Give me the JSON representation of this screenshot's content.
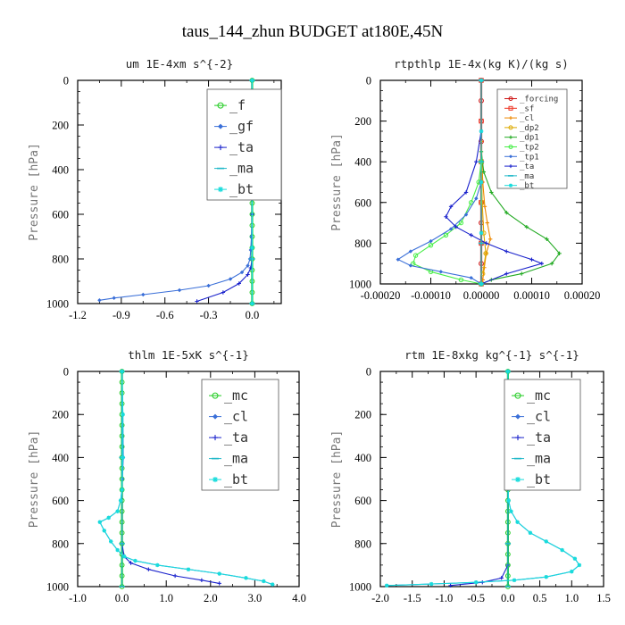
{
  "figure": {
    "title": "taus_144_zhun  BUDGET at180E,45N"
  },
  "chart_data": [
    {
      "id": "um",
      "type": "line",
      "title": "um   1E-4xm s^{-2}",
      "ylabel": "Pressure [hPa]",
      "xlim": [
        -1.2,
        0.2
      ],
      "ylim": [
        1000,
        0
      ],
      "xticks": [
        -1.2,
        -0.9,
        -0.6,
        -0.3,
        0.0
      ],
      "xtick_labels": [
        "-1.2",
        "-0.9",
        "-0.6",
        "-0.3",
        "0.0"
      ],
      "yticks": [
        0,
        200,
        400,
        600,
        800,
        1000
      ],
      "ytick_labels": [
        "0",
        "200",
        "400",
        "600",
        "800",
        "1000"
      ],
      "legend_position": "top-right",
      "series": [
        {
          "name": "_f",
          "color": "#22cc22",
          "marker": "circle",
          "x": [
            0,
            0,
            0,
            0,
            0,
            0,
            0,
            0,
            0,
            0,
            0,
            0,
            0,
            0,
            0,
            0,
            0,
            0,
            0,
            0,
            0
          ],
          "y": [
            0,
            50,
            100,
            150,
            200,
            250,
            300,
            350,
            400,
            450,
            500,
            550,
            600,
            650,
            700,
            750,
            800,
            850,
            900,
            950,
            1000
          ]
        },
        {
          "name": "_gf",
          "color": "#3a6fd8",
          "marker": "diamond",
          "x": [
            0,
            0,
            0,
            0,
            -0.005,
            -0.01,
            -0.015,
            -0.03,
            -0.07,
            -0.15,
            -0.3,
            -0.5,
            -0.75,
            -0.95,
            -1.05
          ],
          "y": [
            0,
            200,
            400,
            600,
            700,
            760,
            800,
            830,
            860,
            890,
            920,
            940,
            960,
            975,
            985
          ]
        },
        {
          "name": "_ta",
          "color": "#1a22cc",
          "marker": "plus",
          "x": [
            0,
            0,
            0,
            0,
            -0.01,
            -0.03,
            -0.09,
            -0.2,
            -0.38
          ],
          "y": [
            0,
            300,
            600,
            800,
            840,
            870,
            910,
            950,
            990
          ]
        },
        {
          "name": "_ma",
          "color": "#20b8c8",
          "marker": "dash",
          "x": [
            0,
            0,
            0,
            0
          ],
          "y": [
            0,
            400,
            800,
            1000
          ]
        },
        {
          "name": "_bt",
          "color": "#18dcdc",
          "marker": "star",
          "x": [
            0,
            0,
            0,
            0,
            0
          ],
          "y": [
            0,
            250,
            500,
            750,
            1000
          ]
        }
      ]
    },
    {
      "id": "rtpthlp",
      "type": "line",
      "title": "rtpthlp   1E-4x(kg K)/(kg s)",
      "ylabel": "Pressure [hPa]",
      "xlim": [
        -0.0002,
        0.0002
      ],
      "ylim": [
        1000,
        0
      ],
      "xticks": [
        -0.0002,
        -0.0001,
        0.0,
        0.0001,
        0.0002
      ],
      "xtick_labels": [
        "-0.00020",
        "-0.00010",
        "0.00000",
        "0.00010",
        "0.00020"
      ],
      "yticks": [
        0,
        200,
        400,
        600,
        800,
        1000
      ],
      "ytick_labels": [
        "0",
        "200",
        "400",
        "600",
        "800",
        "1000"
      ],
      "legend_position": "top-right",
      "series": [
        {
          "name": "_forcing",
          "color": "#cc1111",
          "marker": "circle",
          "x": [
            0,
            0,
            0,
            0,
            0,
            0,
            0,
            0,
            0,
            0,
            0
          ],
          "y": [
            0,
            100,
            200,
            300,
            400,
            500,
            600,
            700,
            800,
            900,
            1000
          ]
        },
        {
          "name": "_sf",
          "color": "#ee3322",
          "marker": "square",
          "x": [
            0,
            0,
            0,
            0,
            0,
            0
          ],
          "y": [
            0,
            200,
            400,
            600,
            800,
            1000
          ]
        },
        {
          "name": "_cl",
          "color": "#ee8800",
          "marker": "plus",
          "x": [
            0,
            3e-06,
            7e-06,
            1.2e-05,
            1.8e-05,
            1e-05,
            6e-06,
            3e-06
          ],
          "y": [
            300,
            500,
            620,
            700,
            780,
            850,
            920,
            980
          ]
        },
        {
          "name": "_dp2",
          "color": "#ddaa00",
          "marker": "circle",
          "x": [
            0,
            2e-06,
            5e-06,
            9e-06,
            3e-06
          ],
          "y": [
            400,
            600,
            750,
            850,
            950
          ]
        },
        {
          "name": "_dp1",
          "color": "#22aa22",
          "marker": "plus",
          "x": [
            0,
            5e-06,
            2e-05,
            5e-05,
            9e-05,
            0.00013,
            0.000155,
            0.00014,
            8e-05,
            2e-05,
            0
          ],
          "y": [
            350,
            450,
            550,
            650,
            720,
            780,
            850,
            900,
            950,
            980,
            1000
          ]
        },
        {
          "name": "_tp2",
          "color": "#44ee44",
          "marker": "circle",
          "x": [
            0,
            -5e-06,
            -2e-05,
            -4e-05,
            -7e-05,
            -0.0001,
            -0.00013,
            -0.000135,
            -0.0001,
            -4e-05,
            0
          ],
          "y": [
            400,
            500,
            600,
            700,
            760,
            810,
            860,
            900,
            940,
            980,
            1000
          ]
        },
        {
          "name": "_tp1",
          "color": "#3a6fd8",
          "marker": "diamond",
          "x": [
            0,
            -1e-05,
            -3e-05,
            -6e-05,
            -0.0001,
            -0.00014,
            -0.000165,
            -0.00014,
            -8e-05,
            -2e-05,
            0
          ],
          "y": [
            500,
            580,
            660,
            730,
            790,
            840,
            880,
            910,
            940,
            970,
            1000
          ]
        },
        {
          "name": "_ta",
          "color": "#1a22cc",
          "marker": "plus",
          "x": [
            0,
            -1e-05,
            -3e-05,
            -6e-05,
            -7e-05,
            -5e-05,
            -2e-05,
            1e-05,
            5e-05,
            0.0001,
            0.00012,
            5e-05,
            0
          ],
          "y": [
            250,
            400,
            550,
            620,
            670,
            720,
            760,
            800,
            840,
            880,
            900,
            950,
            1000
          ]
        },
        {
          "name": "_ma",
          "color": "#20b8c8",
          "marker": "dash",
          "x": [
            0,
            0,
            0,
            0
          ],
          "y": [
            0,
            400,
            800,
            1000
          ]
        },
        {
          "name": "_bt",
          "color": "#18dcdc",
          "marker": "star",
          "x": [
            0,
            0,
            0,
            0,
            0
          ],
          "y": [
            0,
            250,
            500,
            750,
            1000
          ]
        }
      ]
    },
    {
      "id": "thlm",
      "type": "line",
      "title": "thlm   1E-5xK s^{-1}",
      "ylabel": "Pressure [hPa]",
      "xlim": [
        -1.0,
        4.0
      ],
      "ylim": [
        1000,
        0
      ],
      "xticks": [
        -1.0,
        0.0,
        1.0,
        2.0,
        3.0,
        4.0
      ],
      "xtick_labels": [
        "-1.0",
        "0.0",
        "1.0",
        "2.0",
        "3.0",
        "4.0"
      ],
      "yticks": [
        0,
        200,
        400,
        600,
        800,
        1000
      ],
      "ytick_labels": [
        "0",
        "200",
        "400",
        "600",
        "800",
        "1000"
      ],
      "legend_position": "top-right",
      "series": [
        {
          "name": "_mc",
          "color": "#22cc22",
          "marker": "circle",
          "x": [
            0,
            0,
            0,
            0,
            0,
            0,
            0,
            0,
            0,
            0,
            0,
            0,
            0,
            0,
            0,
            0,
            0,
            0,
            0,
            0,
            0
          ],
          "y": [
            0,
            50,
            100,
            150,
            200,
            250,
            300,
            350,
            400,
            450,
            500,
            550,
            600,
            650,
            700,
            750,
            800,
            850,
            900,
            950,
            1000
          ]
        },
        {
          "name": "_cl",
          "color": "#3a6fd8",
          "marker": "diamond",
          "x": [
            0,
            0.02,
            0.03,
            0.01,
            0,
            -0.03,
            -0.1,
            -0.3,
            -0.5,
            -0.4,
            -0.25,
            -0.1,
            0.05,
            0.3,
            0.8,
            1.5,
            2.2,
            2.8,
            3.2,
            3.4
          ],
          "y": [
            0,
            200,
            400,
            500,
            550,
            600,
            650,
            680,
            700,
            740,
            790,
            830,
            860,
            880,
            900,
            920,
            940,
            960,
            975,
            990
          ]
        },
        {
          "name": "_ta",
          "color": "#1a22cc",
          "marker": "plus",
          "x": [
            0,
            0,
            0,
            0.05,
            0.2,
            0.6,
            1.2,
            1.8,
            2.2
          ],
          "y": [
            0,
            400,
            800,
            860,
            890,
            920,
            950,
            970,
            985
          ]
        },
        {
          "name": "_ma",
          "color": "#20b8c8",
          "marker": "dash",
          "x": [
            0,
            0,
            0,
            0
          ],
          "y": [
            0,
            400,
            800,
            1000
          ]
        },
        {
          "name": "_bt",
          "color": "#18dcdc",
          "marker": "star",
          "x": [
            0,
            0.02,
            0.02,
            0,
            -0.03,
            -0.1,
            -0.3,
            -0.5,
            -0.4,
            -0.25,
            -0.1,
            0.05,
            0.3,
            0.8,
            1.5,
            2.2,
            2.8,
            3.2,
            3.4
          ],
          "y": [
            0,
            200,
            400,
            550,
            600,
            650,
            680,
            700,
            740,
            790,
            830,
            860,
            880,
            900,
            920,
            940,
            960,
            975,
            990
          ]
        }
      ]
    },
    {
      "id": "rtm",
      "type": "line",
      "title": "rtm   1E-8xkg kg^{-1} s^{-1}",
      "ylabel": "Pressure [hPa]",
      "xlim": [
        -2.0,
        1.5
      ],
      "ylim": [
        1000,
        0
      ],
      "xticks": [
        -2.0,
        -1.5,
        -1.0,
        -0.5,
        0.0,
        0.5,
        1.0,
        1.5
      ],
      "xtick_labels": [
        "-2.0",
        "-1.5",
        "-1.0",
        "-0.5",
        "0.0",
        "0.5",
        "1.0",
        "1.5"
      ],
      "yticks": [
        0,
        200,
        400,
        600,
        800,
        1000
      ],
      "ytick_labels": [
        "0",
        "200",
        "400",
        "600",
        "800",
        "1000"
      ],
      "legend_position": "top-right",
      "series": [
        {
          "name": "_mc",
          "color": "#22cc22",
          "marker": "circle",
          "x": [
            0,
            0,
            0,
            0,
            0,
            0,
            0,
            0,
            0,
            0,
            0,
            0,
            0,
            0,
            0,
            0,
            0,
            0,
            0,
            0,
            0
          ],
          "y": [
            0,
            50,
            100,
            150,
            200,
            250,
            300,
            350,
            400,
            450,
            500,
            550,
            600,
            650,
            700,
            750,
            800,
            850,
            900,
            950,
            1000
          ]
        },
        {
          "name": "_cl",
          "color": "#3a6fd8",
          "marker": "diamond",
          "x": [
            0,
            0,
            0,
            0.01,
            0.05,
            0.15,
            0.35,
            0.6,
            0.85,
            1.05,
            1.12,
            1.0,
            0.6,
            0.1,
            -0.5,
            -1.2,
            -1.9
          ],
          "y": [
            0,
            300,
            500,
            600,
            650,
            700,
            750,
            790,
            830,
            870,
            900,
            930,
            955,
            970,
            980,
            988,
            995
          ]
        },
        {
          "name": "_ta",
          "color": "#1a22cc",
          "marker": "plus",
          "x": [
            0,
            0,
            0,
            -0.1,
            -0.4,
            -0.9
          ],
          "y": [
            0,
            500,
            900,
            960,
            980,
            995
          ]
        },
        {
          "name": "_ma",
          "color": "#20b8c8",
          "marker": "dash",
          "x": [
            0,
            0,
            0,
            0
          ],
          "y": [
            0,
            400,
            800,
            1000
          ]
        },
        {
          "name": "_bt",
          "color": "#18dcdc",
          "marker": "star",
          "x": [
            0,
            0,
            0,
            0.01,
            0.05,
            0.15,
            0.35,
            0.6,
            0.85,
            1.05,
            1.12,
            1.0,
            0.6,
            0.1,
            -0.5,
            -1.2,
            -1.9
          ],
          "y": [
            0,
            300,
            500,
            600,
            650,
            700,
            750,
            790,
            830,
            870,
            900,
            930,
            955,
            970,
            980,
            988,
            995
          ]
        }
      ]
    }
  ]
}
